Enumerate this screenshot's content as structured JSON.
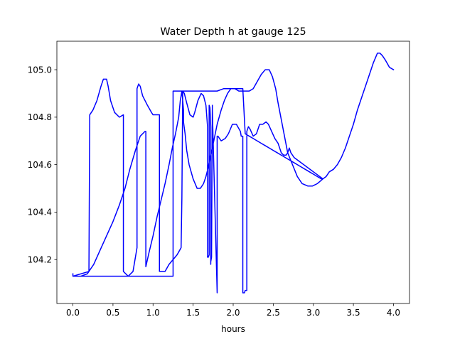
{
  "chart_data": {
    "type": "line",
    "title": "Water Depth h at gauge 125",
    "xlabel": "hours",
    "ylabel": "",
    "xlim": [
      -0.2,
      4.2
    ],
    "ylim": [
      104.015,
      105.12
    ],
    "x_ticks": [
      0.0,
      0.5,
      1.0,
      1.5,
      2.0,
      2.5,
      3.0,
      3.5,
      4.0
    ],
    "x_tick_labels": [
      "0.0",
      "0.5",
      "1.0",
      "1.5",
      "2.0",
      "2.5",
      "3.0",
      "3.5",
      "4.0"
    ],
    "y_ticks": [
      104.2,
      104.4,
      104.6,
      104.8,
      105.0
    ],
    "y_tick_labels": [
      "104.2",
      "104.4",
      "104.6",
      "104.8",
      "105.0"
    ],
    "grid": false,
    "legend": "none",
    "series": [
      {
        "color": "#0000ff",
        "x": [
          0.0,
          0.0,
          0.2,
          0.21,
          0.25,
          0.3,
          0.35,
          0.38,
          0.42,
          0.44,
          0.47,
          0.52,
          0.58,
          0.63,
          0.63,
          0.69,
          0.75,
          0.8,
          0.8,
          0.8,
          0.82,
          0.84,
          0.87,
          0.93,
          0.98,
          1.0,
          1.08,
          1.08,
          1.08,
          1.12,
          1.15,
          1.2,
          1.25,
          1.3,
          1.35,
          1.36,
          1.37,
          1.37,
          1.39,
          1.42,
          1.46,
          1.5,
          1.52,
          1.56,
          1.6,
          1.63,
          1.66,
          1.68,
          1.68,
          1.69,
          1.7,
          1.7,
          1.71,
          1.72,
          1.72,
          1.72,
          1.73,
          1.74,
          1.74,
          1.74,
          1.8,
          1.8,
          1.81,
          1.85,
          1.9,
          1.94,
          1.99,
          2.04,
          2.09,
          2.1,
          2.12,
          2.12,
          2.14,
          2.15,
          2.17,
          2.17,
          2.18,
          2.19,
          2.21,
          2.25,
          2.29,
          2.33,
          2.37,
          2.41,
          2.44,
          2.48,
          2.52,
          2.56,
          2.6,
          2.63,
          2.66,
          2.68,
          2.7,
          2.72,
          2.76,
          3.12,
          3.12,
          3.12,
          3.05,
          2.99,
          2.93,
          2.86,
          2.8,
          2.74,
          2.68,
          2.64,
          2.6,
          2.56,
          2.53,
          2.49,
          2.45,
          2.4,
          2.35,
          2.3,
          2.25,
          2.2,
          2.16,
          2.12,
          2.07,
          2.02,
          1.97,
          1.93,
          1.89,
          1.85,
          1.8,
          1.77,
          1.74,
          1.71,
          1.69,
          1.66,
          1.63,
          1.59,
          1.55,
          1.5,
          1.45,
          1.42,
          1.4,
          1.38,
          1.38,
          1.37,
          1.36,
          1.36,
          1.34,
          1.32,
          1.28,
          1.24,
          1.2,
          1.15,
          1.1,
          1.05,
          1.0,
          0.95,
          0.91,
          0.91,
          0.9,
          0.84,
          0.78,
          0.71,
          0.65,
          0.58,
          0.5,
          0.42,
          0.34,
          0.26,
          0.18,
          0.1,
          0.02,
          0.0,
          0.0,
          0.12,
          0.24,
          0.36,
          0.48,
          0.6,
          0.72,
          0.84,
          0.96,
          1.08,
          1.2,
          1.25,
          1.25,
          1.33,
          1.4,
          1.48,
          1.56,
          1.64,
          1.72,
          1.8,
          1.88,
          1.96,
          2.04,
          2.12,
          2.15,
          2.2,
          2.25,
          2.3,
          2.35,
          2.4,
          2.45,
          2.5,
          2.55,
          2.6,
          2.65,
          2.7,
          2.75,
          2.8,
          2.85,
          2.9,
          2.95,
          3.0,
          3.05,
          3.1,
          3.12,
          3.16,
          3.2,
          3.25,
          3.3,
          3.35,
          3.4,
          3.45,
          3.5,
          3.55,
          3.6,
          3.65,
          3.7,
          3.75,
          3.8,
          3.83,
          3.86,
          3.9,
          3.95,
          4.0
        ],
        "y": [
          104.14,
          104.13,
          104.15,
          104.81,
          104.83,
          104.87,
          104.93,
          104.96,
          104.96,
          104.93,
          104.87,
          104.82,
          104.8,
          104.81,
          104.15,
          104.13,
          104.15,
          104.25,
          104.25,
          104.92,
          104.94,
          104.93,
          104.89,
          104.85,
          104.82,
          104.81,
          104.81,
          104.81,
          104.15,
          104.15,
          104.15,
          104.18,
          104.2,
          104.22,
          104.25,
          104.46,
          104.91,
          104.91,
          104.9,
          104.86,
          104.81,
          104.8,
          104.82,
          104.87,
          104.9,
          104.89,
          104.85,
          104.76,
          104.21,
          104.21,
          104.22,
          104.85,
          104.84,
          104.76,
          104.18,
          104.19,
          104.21,
          104.85,
          104.84,
          104.83,
          104.06,
          104.72,
          104.72,
          104.7,
          104.71,
          104.73,
          104.77,
          104.77,
          104.74,
          104.72,
          104.72,
          104.06,
          104.06,
          104.07,
          104.07,
          104.74,
          104.75,
          104.76,
          104.75,
          104.72,
          104.73,
          104.77,
          104.77,
          104.78,
          104.77,
          104.74,
          104.71,
          104.69,
          104.65,
          104.64,
          104.64,
          104.65,
          104.67,
          104.65,
          104.63,
          104.54,
          104.54,
          104.54,
          104.52,
          104.51,
          104.51,
          104.52,
          104.55,
          104.6,
          104.65,
          104.72,
          104.79,
          104.86,
          104.92,
          104.97,
          105.0,
          105.0,
          104.98,
          104.95,
          104.92,
          104.91,
          104.91,
          104.91,
          104.91,
          104.92,
          104.92,
          104.9,
          104.87,
          104.83,
          104.77,
          104.72,
          104.67,
          104.63,
          104.59,
          104.55,
          104.52,
          104.5,
          104.5,
          104.54,
          104.6,
          104.66,
          104.73,
          104.78,
          104.83,
          104.87,
          104.91,
          104.91,
          104.87,
          104.8,
          104.73,
          104.67,
          104.6,
          104.52,
          104.45,
          104.38,
          104.3,
          104.23,
          104.17,
          104.74,
          104.74,
          104.72,
          104.66,
          104.58,
          104.5,
          104.43,
          104.36,
          104.3,
          104.24,
          104.18,
          104.14,
          104.13,
          104.13,
          104.13,
          104.13,
          104.13,
          104.13,
          104.13,
          104.13,
          104.13,
          104.13,
          104.13,
          104.13,
          104.13,
          104.13,
          104.13,
          104.91,
          104.91,
          104.91,
          104.91,
          104.91,
          104.91,
          104.91,
          104.91,
          104.92,
          104.92,
          104.92,
          104.92,
          104.73,
          104.72,
          104.71,
          104.7,
          104.69,
          104.68,
          104.67,
          104.66,
          104.65,
          104.64,
          104.63,
          104.62,
          104.61,
          104.6,
          104.59,
          104.58,
          104.57,
          104.56,
          104.55,
          104.54,
          104.54,
          104.55,
          104.57,
          104.58,
          104.6,
          104.63,
          104.67,
          104.72,
          104.77,
          104.83,
          104.88,
          104.93,
          104.98,
          105.03,
          105.07,
          105.07,
          105.06,
          105.04,
          105.01,
          105.0
        ]
      }
    ]
  }
}
